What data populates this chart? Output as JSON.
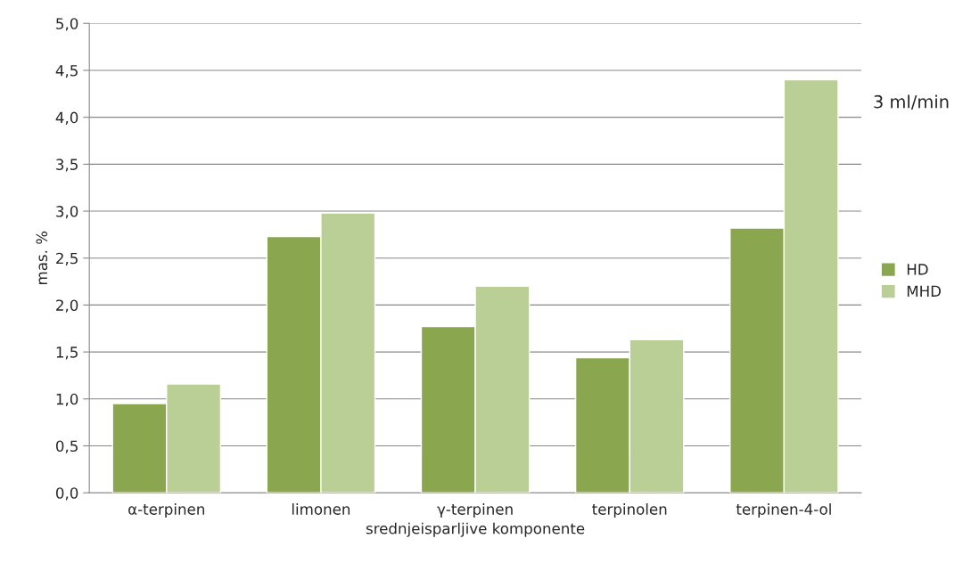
{
  "chart_data": {
    "type": "bar",
    "categories": [
      "α-terpinen",
      "limonen",
      "γ-terpinen",
      "terpinolen",
      "terpinen-4-ol"
    ],
    "series": [
      {
        "name": "HD",
        "color": "#8aa64e",
        "values": [
          0.95,
          2.73,
          1.77,
          1.44,
          2.82
        ]
      },
      {
        "name": "MHD",
        "color": "#b9cf95",
        "values": [
          1.16,
          2.98,
          2.2,
          1.63,
          4.4
        ]
      }
    ],
    "xlabel": "srednjeisparljive komponente",
    "ylabel": "mas. %",
    "annotations": [
      "3 ml/min"
    ],
    "ylim": [
      0,
      5
    ],
    "yticks": [
      {
        "value": 0,
        "label": "0,0"
      },
      {
        "value": 0.5,
        "label": "0,5"
      },
      {
        "value": 1,
        "label": "1,0"
      },
      {
        "value": 1.5,
        "label": "1,5"
      },
      {
        "value": 2,
        "label": "2,0"
      },
      {
        "value": 2.5,
        "label": "2,5"
      },
      {
        "value": 3,
        "label": "3,0"
      },
      {
        "value": 3.5,
        "label": "3,5"
      },
      {
        "value": 4,
        "label": "4,0"
      },
      {
        "value": 4.5,
        "label": "4,5"
      },
      {
        "value": 5,
        "label": "5,0"
      }
    ],
    "grid": "y",
    "legend": "right"
  }
}
